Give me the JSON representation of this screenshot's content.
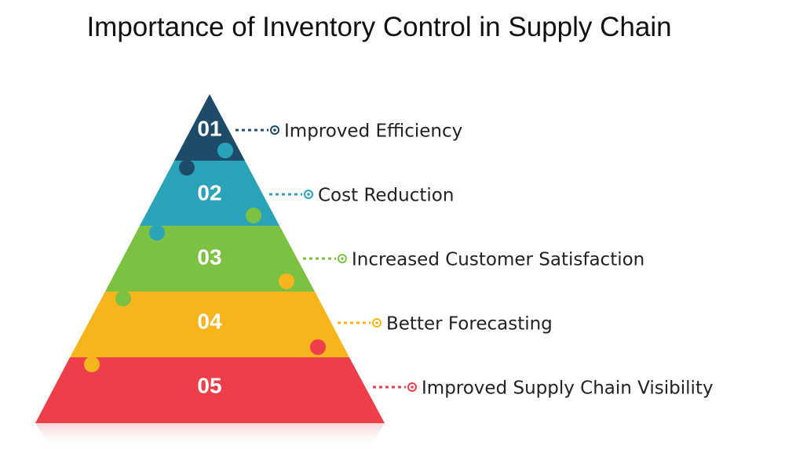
{
  "header": {
    "title": "Importance of Inventory Control in Supply Chain"
  },
  "levels": [
    {
      "number": "01",
      "label": "Improved Efficiency"
    },
    {
      "number": "02",
      "label": "Cost Reduction"
    },
    {
      "number": "03",
      "label": "Increased Customer Satisfaction"
    },
    {
      "number": "04",
      "label": "Better Forecasting"
    },
    {
      "number": "05",
      "label": "Improved Supply Chain Visibility"
    }
  ]
}
